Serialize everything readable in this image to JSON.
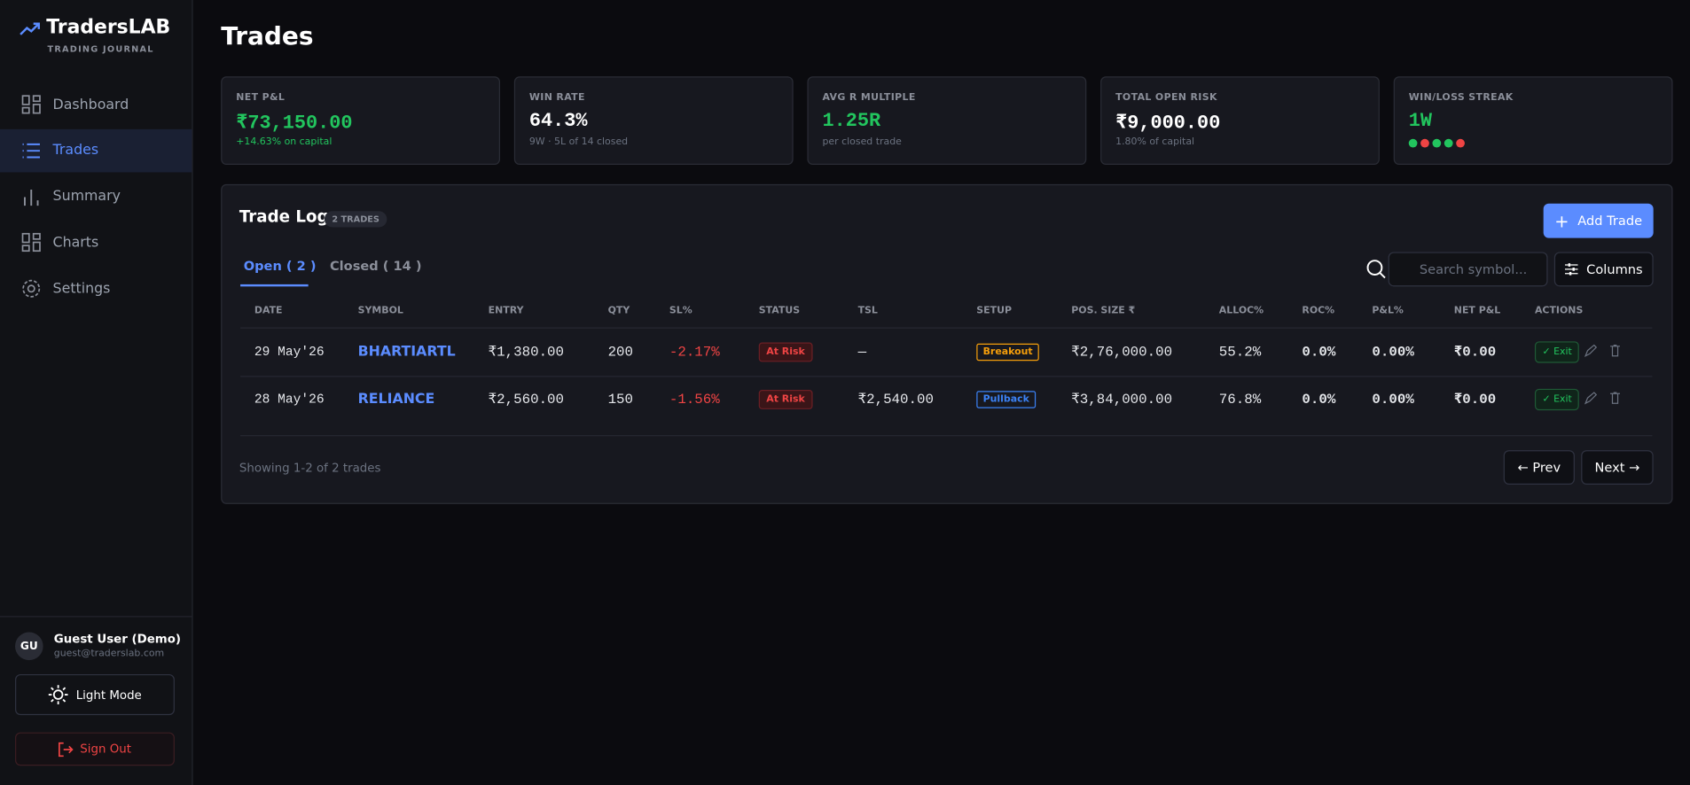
{
  "brand": {
    "name": "TradersLAB",
    "tagline": "TRADING JOURNAL"
  },
  "nav": [
    "Dashboard",
    "Trades",
    "Summary",
    "Charts",
    "Settings"
  ],
  "user": {
    "initials": "GU",
    "name": "Guest User (Demo)",
    "email": "guest@traderslab.com"
  },
  "buttons": {
    "theme": "Light Mode",
    "signout": "Sign Out"
  },
  "header": {
    "title": "Trades"
  },
  "stats": [
    {
      "label": "NET P&L",
      "value": "₹73,150.00",
      "sub": "+14.63% on capital",
      "color": "#22c55e",
      "sub_color": "#22c55e"
    },
    {
      "label": "WIN RATE",
      "value": "64.3%",
      "sub": "9W · 5L of 14 closed",
      "color": "#ffffff",
      "sub_color": "#6b7280"
    },
    {
      "label": "AVG R MULTIPLE",
      "value": "1.25R",
      "sub": "per closed trade",
      "color": "#22c55e",
      "sub_color": "#6b7280"
    },
    {
      "label": "TOTAL OPEN RISK",
      "value": "₹9,000.00",
      "sub": "1.80% of capital",
      "color": "#ffffff",
      "sub_color": "#6b7280"
    },
    {
      "label": "WIN/LOSS STREAK",
      "value": "1W",
      "color": "#22c55e",
      "streak_colors": [
        "#22c55e",
        "#ef4444",
        "#22c55e",
        "#22c55e",
        "#ef4444"
      ]
    }
  ],
  "log": {
    "title": "Trade Log",
    "badge": "2 TRADES",
    "add": "Add Trade",
    "tabs": [
      "Open ( 2 )",
      "Closed ( 14 )"
    ],
    "search": "Search symbol...",
    "columns_btn": "Columns",
    "table": {
      "columns": [
        "DATE",
        "SYMBOL",
        "ENTRY",
        "QTY",
        "SL%",
        "STATUS",
        "TSL",
        "SETUP",
        "POS. SIZE ₹",
        "ALLOC%",
        "ROC%",
        "P&L%",
        "NET P&L",
        "ACTIONS"
      ],
      "rows": [
        [
          "29 May'26",
          "BHARTIARTL",
          "₹1,380.00",
          "200",
          "-2.17%",
          "At Risk",
          "—",
          "Breakout",
          "₹2,76,000.00",
          "55.2%",
          "0.0%",
          "0.00%",
          "₹0.00",
          "✓ Exit"
        ],
        [
          "28 May'26",
          "RELIANCE",
          "₹2,560.00",
          "150",
          "-1.56%",
          "At Risk",
          "₹2,540.00",
          "Pullback",
          "₹3,84,000.00",
          "76.8%",
          "0.0%",
          "0.00%",
          "₹0.00",
          "✓ Exit"
        ]
      ],
      "setup_colors": [
        "#f59e0b",
        "#3b82f6"
      ]
    },
    "footer": "Showing 1-2 of 2 trades",
    "prev": "← Prev",
    "next": "Next →"
  }
}
